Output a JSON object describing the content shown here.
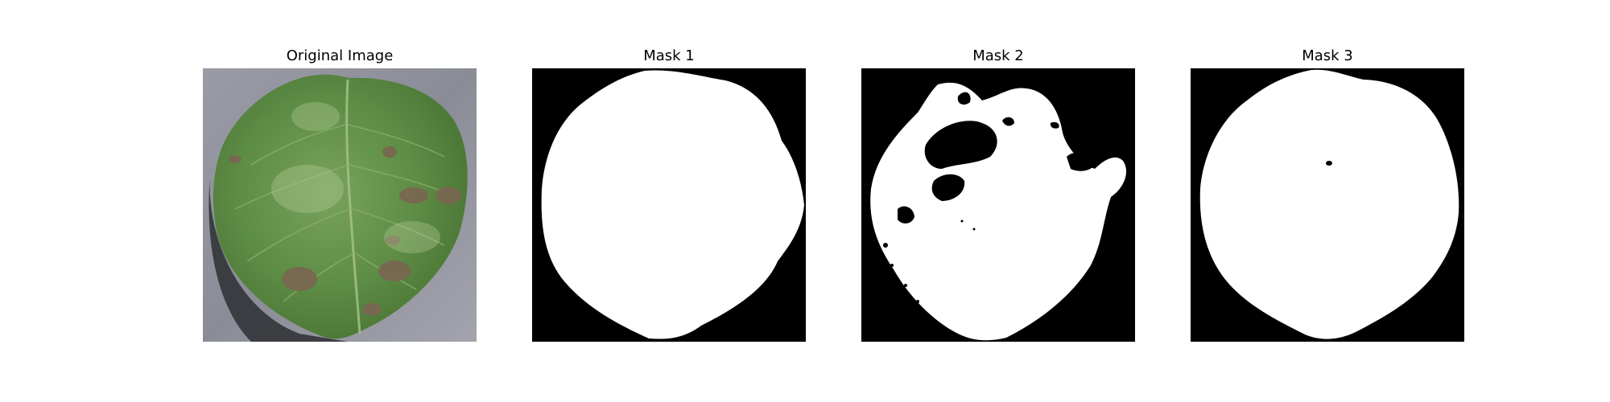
{
  "figure": {
    "panels": [
      {
        "title": "Original Image",
        "kind": "photo",
        "description_icon": "leaf-photo"
      },
      {
        "title": "Mask 1",
        "kind": "mask"
      },
      {
        "title": "Mask 2",
        "kind": "mask"
      },
      {
        "title": "Mask 3",
        "kind": "mask"
      }
    ],
    "colors": {
      "mask_background": "#000000",
      "mask_foreground": "#ffffff",
      "photo_background": "#8d8f99",
      "leaf_green": "#5f8f47",
      "lesion_brown": "#7d6a55"
    }
  }
}
